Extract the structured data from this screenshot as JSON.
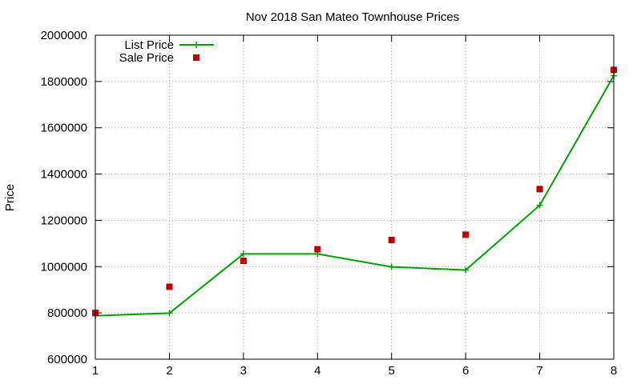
{
  "chart_data": {
    "type": "line",
    "title": "Nov 2018 San Mateo Townhouse Prices",
    "xlabel": "",
    "ylabel": "Price",
    "x": [
      1,
      2,
      3,
      4,
      5,
      6,
      7,
      8
    ],
    "xlim": [
      1,
      8
    ],
    "ylim": [
      600000,
      2000000
    ],
    "x_ticks": [
      "1",
      "2",
      "3",
      "4",
      "5",
      "6",
      "7",
      "8"
    ],
    "y_ticks": [
      "600000",
      "800000",
      "1000000",
      "1200000",
      "1400000",
      "1600000",
      "1800000",
      "2000000"
    ],
    "grid": true,
    "grid_style": "dotted",
    "legend_position": "top-left",
    "series": [
      {
        "name": "List Price",
        "kind": "line-with-plus-markers",
        "color": "#00a000",
        "values": [
          788000,
          799000,
          1055000,
          1055000,
          999000,
          985000,
          1265000,
          1825000
        ]
      },
      {
        "name": "Sale Price",
        "kind": "square-points",
        "color": "#c00000",
        "values": [
          800000,
          913000,
          1025000,
          1075000,
          1115000,
          1138000,
          1335000,
          1850000
        ]
      }
    ]
  }
}
